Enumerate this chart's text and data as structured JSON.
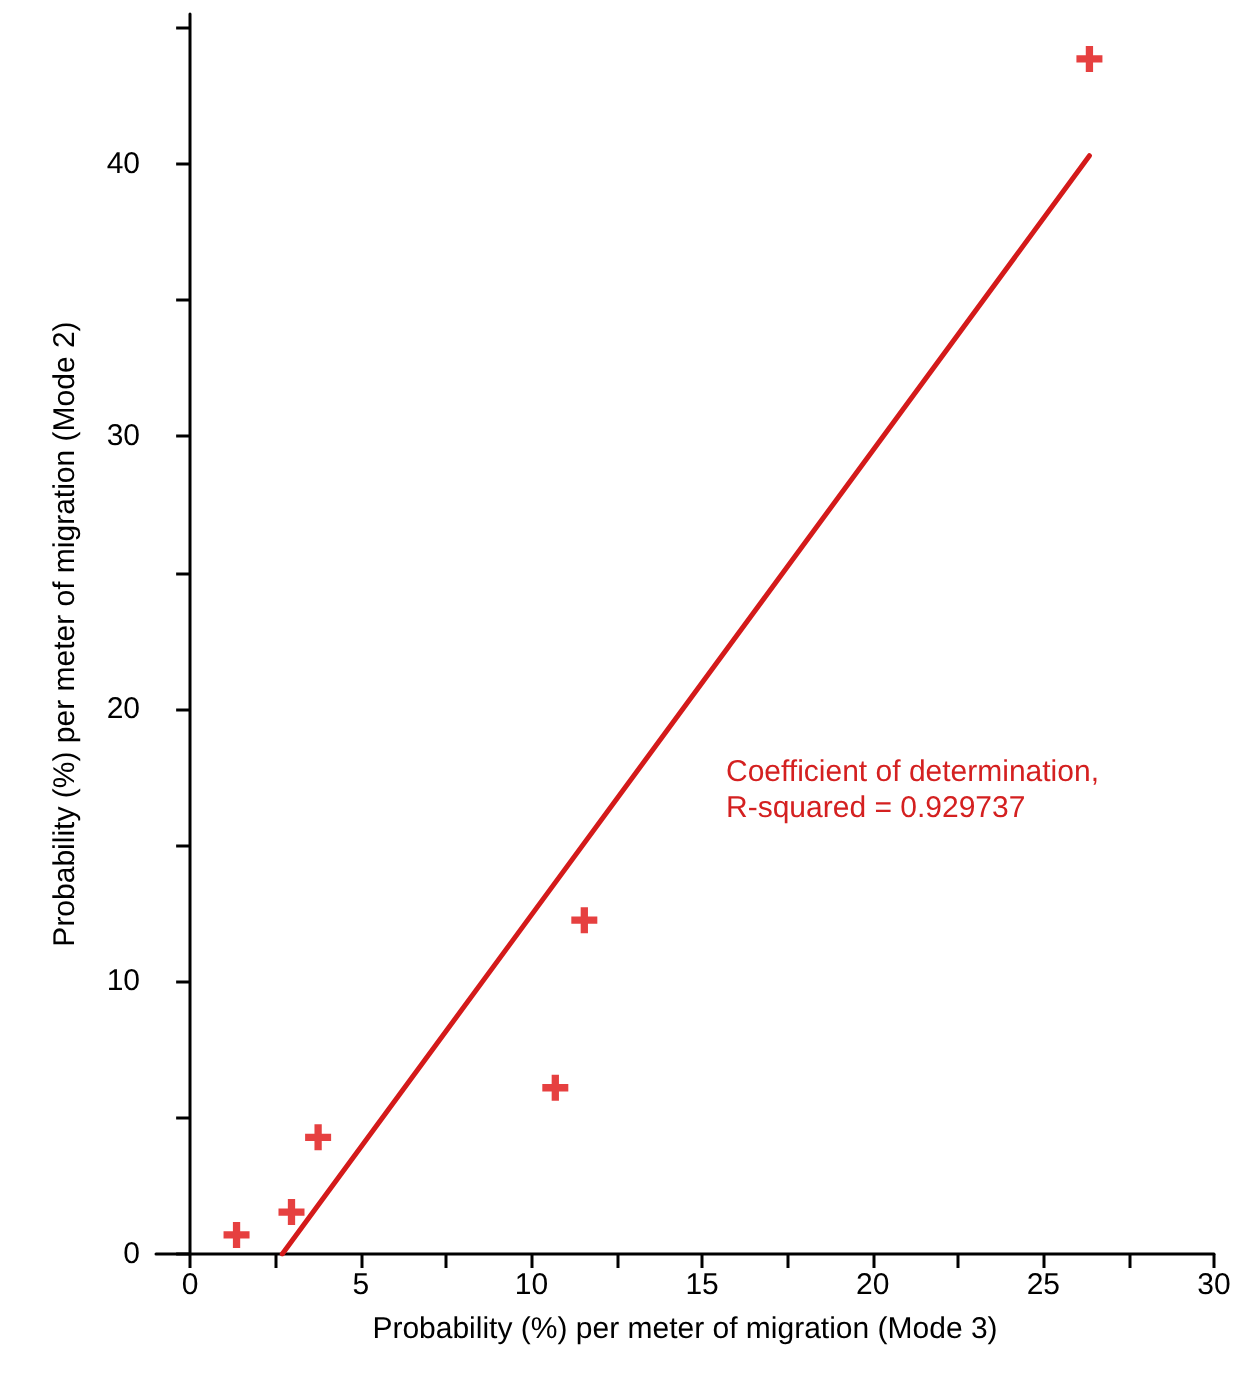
{
  "chart_data": {
    "type": "scatter",
    "xlabel": "Probability (%) per meter of migration (Mode 3)",
    "ylabel": "Probability (%) per meter of migration (Mode 2)",
    "annotations": [
      "Coefficient of determination,\nR-squared = 0.929737"
    ],
    "xlim": [
      -1,
      30
    ],
    "xticks": [
      0,
      {
        "value": 2.5,
        "label": null
      },
      5,
      {
        "value": 7.5,
        "label": null
      },
      10,
      {
        "value": 12.5,
        "label": null
      },
      15,
      {
        "value": 17.5,
        "label": null
      },
      20,
      {
        "value": 22.5,
        "label": null
      },
      25,
      {
        "value": 27.5,
        "label": null
      },
      30
    ],
    "ylim": [
      0,
      45.5
    ],
    "yticks": [
      0,
      {
        "value": 5,
        "label": null
      },
      10,
      {
        "value": 15,
        "label": null
      },
      20,
      {
        "value": 25,
        "label": null
      },
      30,
      {
        "value": 35,
        "label": null
      },
      40,
      {
        "value": 45,
        "label": null
      }
    ],
    "series": [
      {
        "marker": "cross",
        "color": "#e01010",
        "x": [
          1.36,
          2.97,
          3.75,
          10.7,
          11.55,
          26.35
        ],
        "values": [
          0.7,
          1.54,
          4.28,
          6.1,
          12.25,
          43.85
        ]
      },
      {
        "type": "line",
        "marker": "none",
        "line_style": "solid",
        "color": "#d41a1a",
        "x": [
          2.7,
          26.35
        ],
        "values": [
          0,
          40.3
        ]
      }
    ]
  }
}
